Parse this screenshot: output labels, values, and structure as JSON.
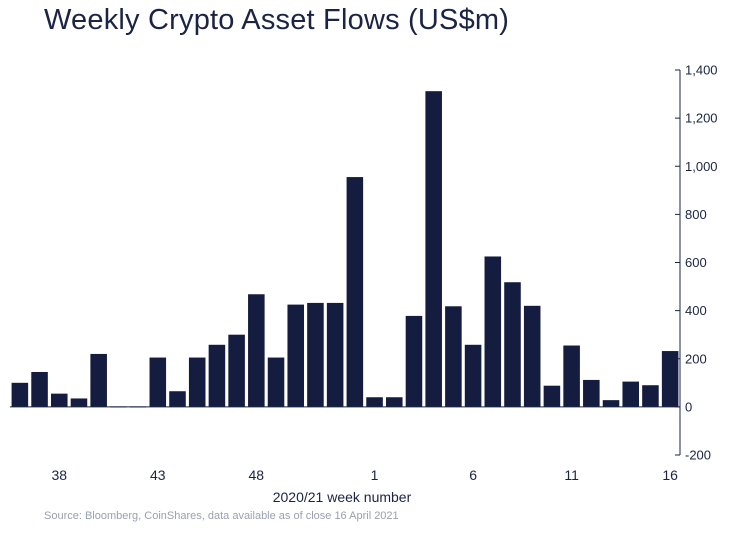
{
  "chart_data": {
    "type": "bar",
    "title": "Weekly Crypto Asset Flows (US$m)",
    "xlabel": "2020/21 week number",
    "ylabel": "",
    "ylim": [
      -200,
      1400
    ],
    "y_ticks": [
      -200,
      0,
      200,
      400,
      600,
      800,
      1000,
      1200,
      1400
    ],
    "y_tick_labels": [
      "-200",
      "0",
      "200",
      "400",
      "600",
      "800",
      "1,000",
      "1,200",
      "1,400"
    ],
    "y_axis_position": "right",
    "grid": false,
    "categories": [
      "36",
      "37",
      "38",
      "39",
      "40",
      "41",
      "42",
      "43",
      "44",
      "45",
      "46",
      "47",
      "48",
      "49",
      "50",
      "51",
      "52",
      "53",
      "1",
      "2",
      "3",
      "4",
      "5",
      "6",
      "7",
      "8",
      "9",
      "10",
      "11",
      "12",
      "13",
      "14",
      "15",
      "16"
    ],
    "x_tick_labels": [
      {
        "category": "38",
        "label": "38"
      },
      {
        "category": "43",
        "label": "43"
      },
      {
        "category": "48",
        "label": "48"
      },
      {
        "category": "1",
        "label": "1"
      },
      {
        "category": "6",
        "label": "6"
      },
      {
        "category": "11",
        "label": "11"
      },
      {
        "category": "16",
        "label": "16"
      }
    ],
    "values": [
      100,
      145,
      55,
      35,
      220,
      2,
      2,
      205,
      65,
      205,
      258,
      300,
      468,
      205,
      425,
      432,
      432,
      955,
      40,
      40,
      378,
      1312,
      418,
      258,
      625,
      518,
      420,
      88,
      255,
      112,
      28,
      105,
      90,
      232
    ],
    "bar_color": "#141c3f"
  },
  "source": "Source: Bloomberg, CoinShares, data available as of close 16 April 2021"
}
